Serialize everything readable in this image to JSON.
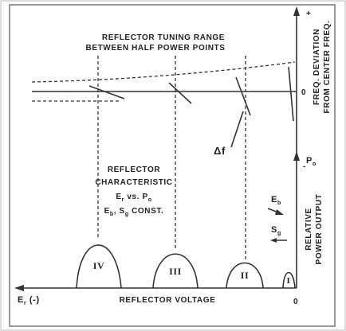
{
  "title": [
    "REFLECTOR TUNING RANGE",
    "BETWEEN HALF POWER POINTS"
  ],
  "freq_axis": {
    "plus": "+",
    "zero": "0",
    "minus": "-",
    "label": [
      "FREQ. DEVIATION",
      "FROM CENTER FREQ."
    ]
  },
  "delta_f": "Δf",
  "characteristic": {
    "line1": "REFLECTOR",
    "line2": "CHARACTERISTIC",
    "line3": [
      "E",
      "r",
      " vs. P",
      "o"
    ],
    "line4": [
      "E",
      "b",
      ", S",
      "g",
      " CONST."
    ]
  },
  "eb": [
    "E",
    "b"
  ],
  "sg": [
    "S",
    "g"
  ],
  "power_axis": {
    "symbol": [
      "P",
      "o"
    ],
    "label": [
      "RELATIVE",
      "POWER OUTPUT"
    ]
  },
  "modes": [
    "IV",
    "III",
    "II",
    "I"
  ],
  "voltage_axis": {
    "left": [
      "E",
      "r",
      " (-)"
    ],
    "label": "REFLECTOR VOLTAGE",
    "zero": "0"
  }
}
